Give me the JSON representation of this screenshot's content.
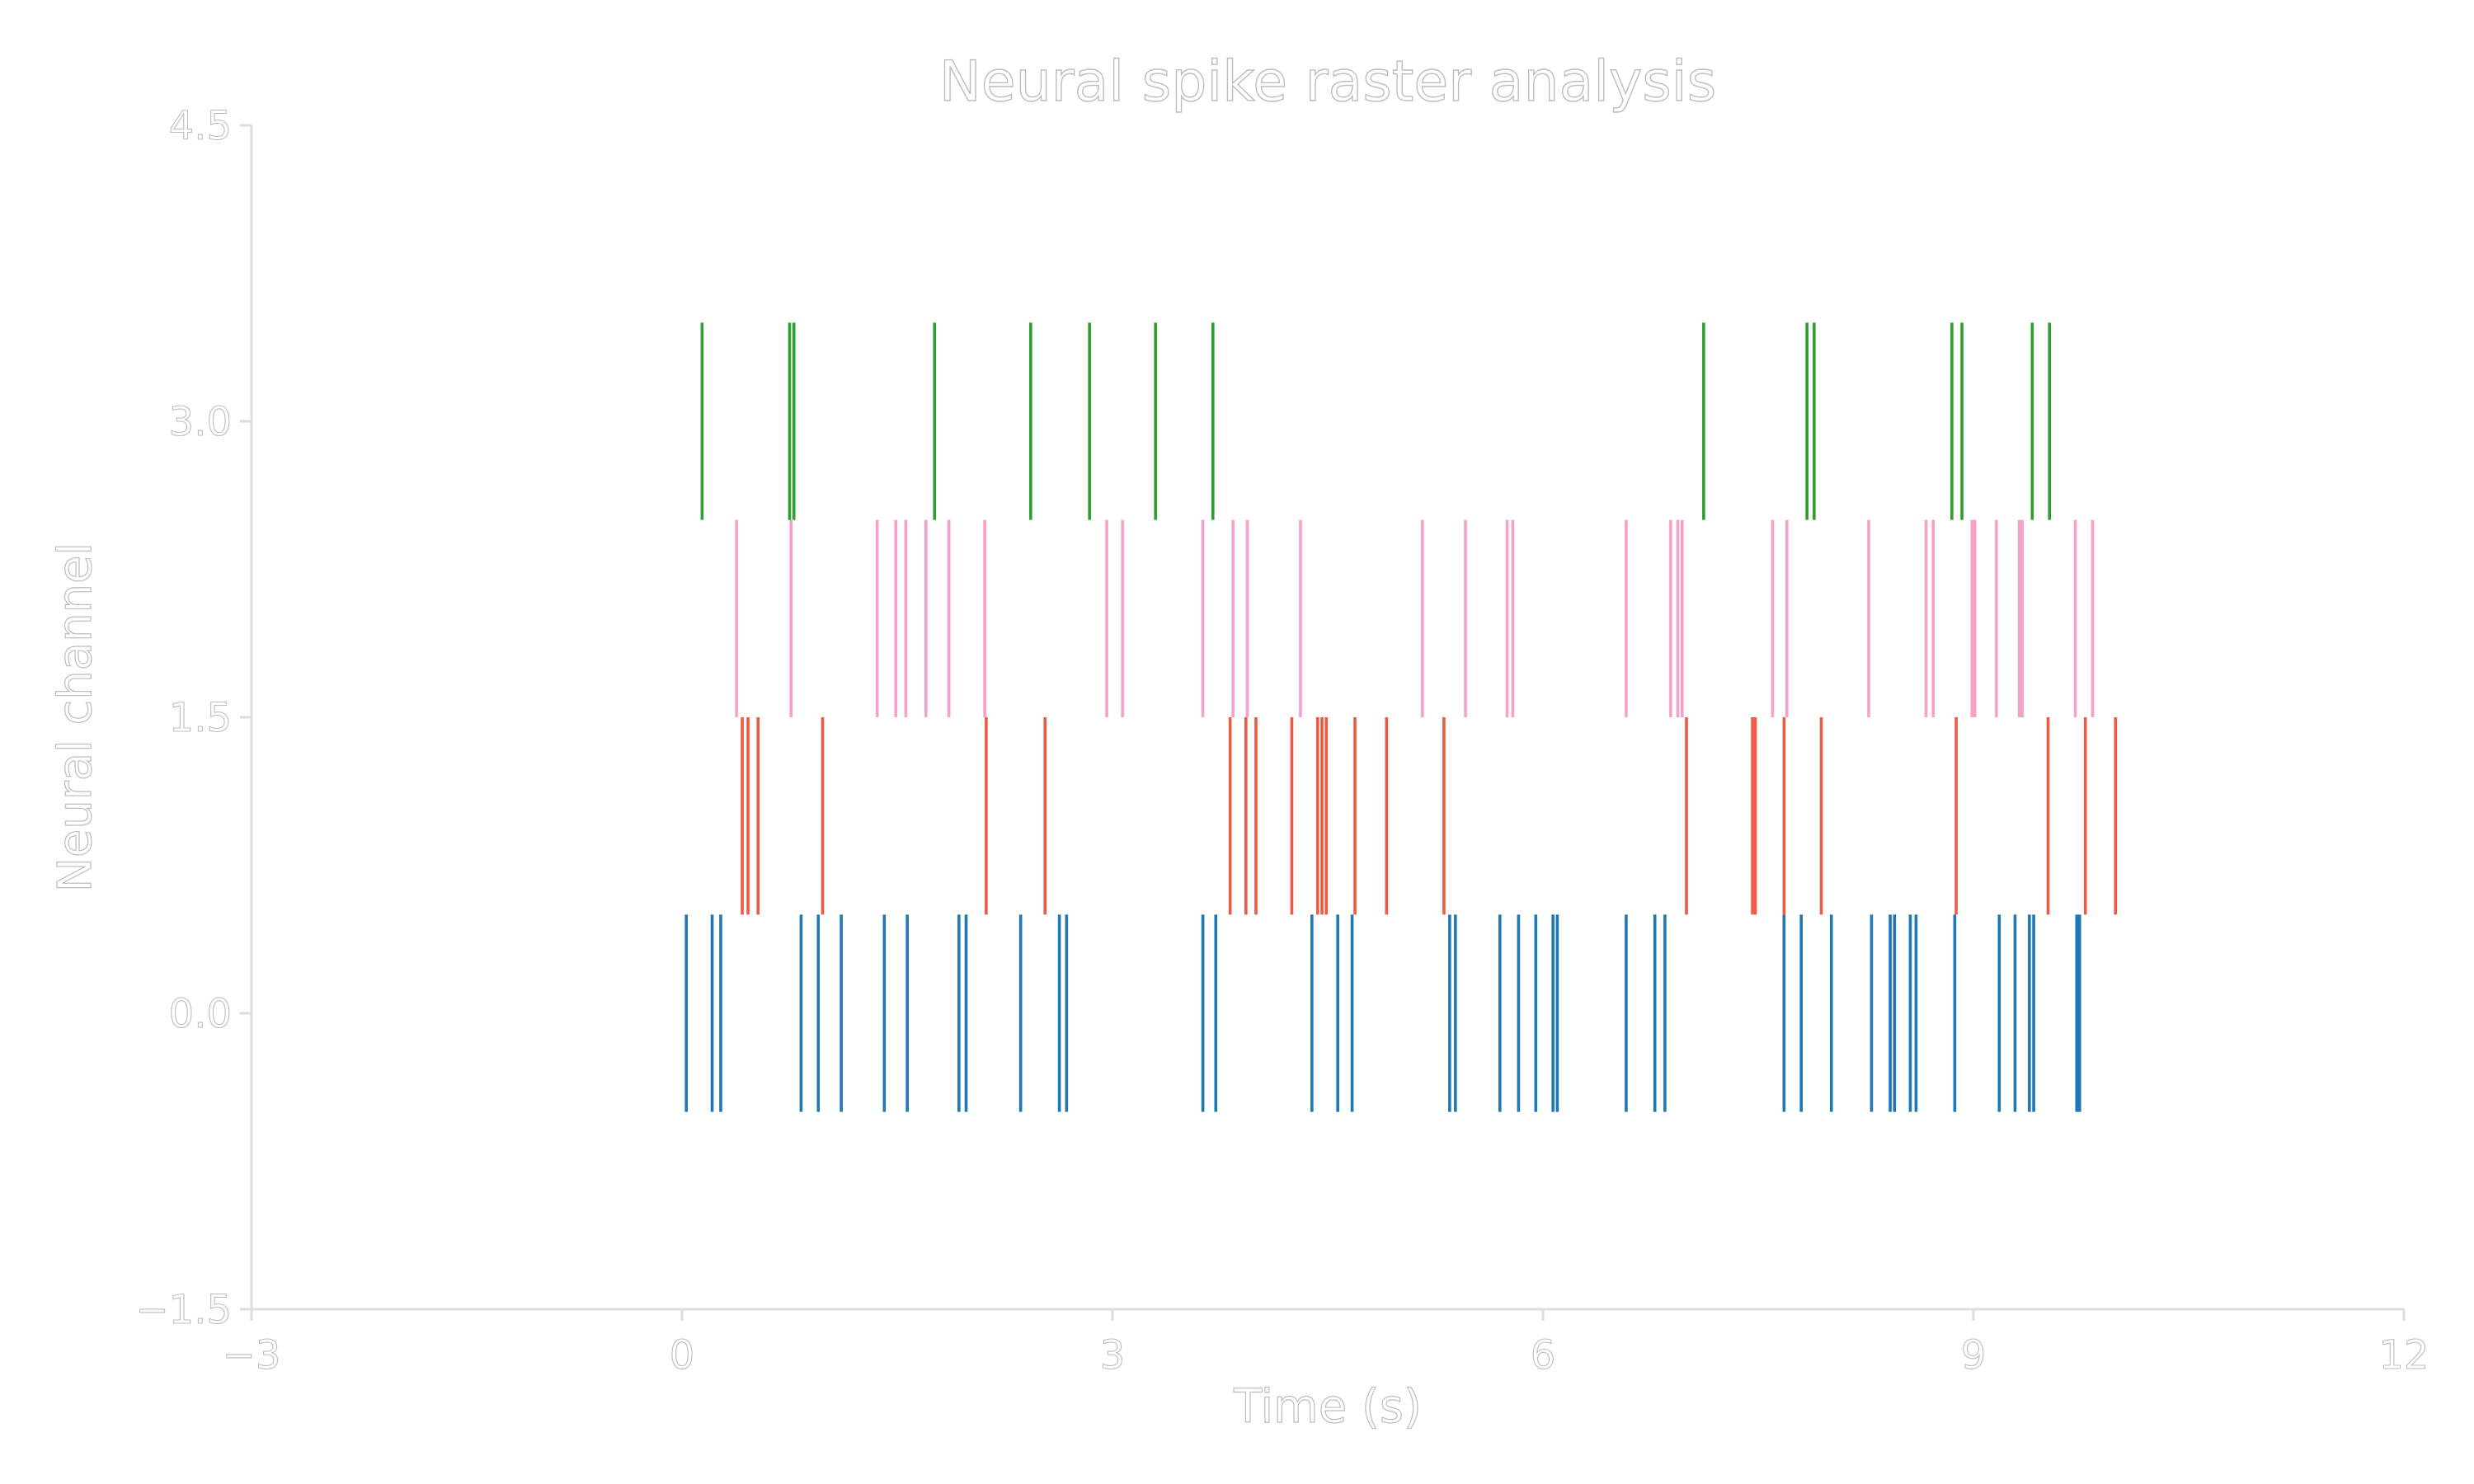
{
  "chart_data": {
    "type": "raster",
    "title": "Neural spike raster analysis",
    "xlabel": "Time (s)",
    "ylabel": "Neural channel",
    "xlim": [
      -3,
      12
    ],
    "ylim": [
      -1.5,
      4.5
    ],
    "xticks": [
      -3,
      0,
      3,
      6,
      9,
      12
    ],
    "xtick_labels": [
      "−3",
      "0",
      "3",
      "6",
      "9",
      "12"
    ],
    "yticks": [
      -1.5,
      0.0,
      1.5,
      3.0,
      4.5
    ],
    "ytick_labels": [
      "−1.5",
      "0.0",
      "1.5",
      "3.0",
      "4.5"
    ],
    "grid": false,
    "series": [
      {
        "offset": 0,
        "color": "#1f77b4",
        "times": [
          0.03,
          0.21,
          0.27,
          0.83,
          0.95,
          1.11,
          1.41,
          1.57,
          1.93,
          1.98,
          2.36,
          2.63,
          2.68,
          3.63,
          3.72,
          4.39,
          4.57,
          4.67,
          5.35,
          5.39,
          5.7,
          5.83,
          5.95,
          6.07,
          6.1,
          6.58,
          6.78,
          6.85,
          7.68,
          7.8,
          8.01,
          8.29,
          8.42,
          8.45,
          8.56,
          8.6,
          8.87,
          9.18,
          9.29,
          9.39,
          9.42,
          9.72,
          9.74
        ]
      },
      {
        "offset": 1,
        "color": "#ef5a45",
        "times": [
          0.42,
          0.46,
          0.53,
          0.98,
          2.12,
          2.53,
          3.82,
          3.93,
          4.0,
          4.25,
          4.43,
          4.46,
          4.49,
          4.69,
          4.91,
          5.31,
          7.0,
          7.46,
          7.48,
          7.68,
          7.94,
          8.88,
          9.52,
          9.78,
          9.99
        ]
      },
      {
        "offset": 2,
        "color": "#f7a1c9",
        "times": [
          0.38,
          0.76,
          1.36,
          1.49,
          1.56,
          1.7,
          1.86,
          2.11,
          2.96,
          3.07,
          3.63,
          3.84,
          3.94,
          4.31,
          5.16,
          5.46,
          5.75,
          5.79,
          6.58,
          6.89,
          6.94,
          6.97,
          7.6,
          7.7,
          8.27,
          8.67,
          8.72,
          8.99,
          9.01,
          9.16,
          9.32,
          9.34,
          9.71,
          9.83
        ]
      },
      {
        "offset": 3,
        "color": "#2ca02c",
        "times": [
          0.14,
          0.75,
          0.78,
          1.76,
          2.43,
          2.84,
          3.3,
          3.7,
          7.12,
          7.84,
          7.89,
          8.85,
          8.92,
          9.41,
          9.53
        ]
      }
    ]
  }
}
